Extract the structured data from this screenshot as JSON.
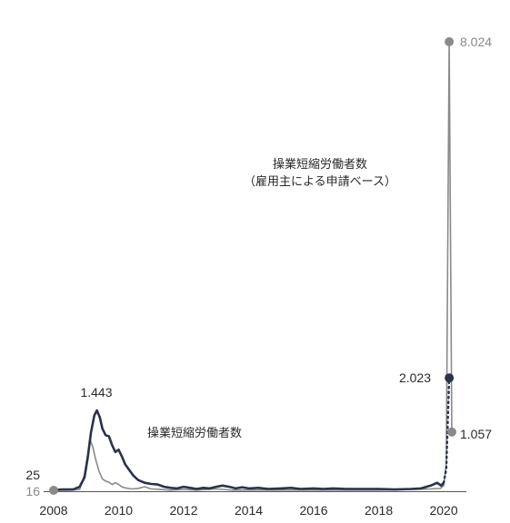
{
  "chart_data": {
    "type": "line",
    "title": "",
    "xlabel": "",
    "ylabel": "",
    "x_ticks": [
      2008,
      2010,
      2012,
      2014,
      2016,
      2018,
      2020
    ],
    "xlim": [
      2008,
      2020.85
    ],
    "ylim": [
      0,
      8.3
    ],
    "grid": false,
    "colors": {
      "dark": "#2a3347",
      "grey": "#8a8a8a",
      "axis": "#555555"
    },
    "annotations": {
      "peak_2009": "1.443",
      "start_dark": "25",
      "start_grey": "16",
      "end_dark": "2.023",
      "end_grey_peak": "8.024",
      "end_grey_last": "1.057",
      "series_label_dark": "操業短縮労働者数",
      "series_label_grey_line1": "操業短縮労働者数",
      "series_label_grey_line2": "（雇用主による申請ベース）"
    },
    "series": [
      {
        "name": "操業短縮労働者数",
        "color": "#2a3347",
        "points": [
          [
            2008.0,
            0.025
          ],
          [
            2008.3,
            0.03
          ],
          [
            2008.6,
            0.03
          ],
          [
            2008.8,
            0.08
          ],
          [
            2008.95,
            0.25
          ],
          [
            2009.05,
            0.6
          ],
          [
            2009.15,
            1.05
          ],
          [
            2009.25,
            1.35
          ],
          [
            2009.33,
            1.443
          ],
          [
            2009.42,
            1.32
          ],
          [
            2009.5,
            1.12
          ],
          [
            2009.6,
            1.0
          ],
          [
            2009.7,
            0.98
          ],
          [
            2009.8,
            0.82
          ],
          [
            2009.9,
            0.7
          ],
          [
            2010.0,
            0.74
          ],
          [
            2010.1,
            0.62
          ],
          [
            2010.2,
            0.48
          ],
          [
            2010.3,
            0.4
          ],
          [
            2010.45,
            0.28
          ],
          [
            2010.6,
            0.2
          ],
          [
            2010.8,
            0.15
          ],
          [
            2011.0,
            0.13
          ],
          [
            2011.2,
            0.12
          ],
          [
            2011.4,
            0.08
          ],
          [
            2011.6,
            0.06
          ],
          [
            2011.8,
            0.05
          ],
          [
            2012.0,
            0.08
          ],
          [
            2012.2,
            0.06
          ],
          [
            2012.4,
            0.04
          ],
          [
            2012.6,
            0.06
          ],
          [
            2012.8,
            0.05
          ],
          [
            2013.0,
            0.08
          ],
          [
            2013.2,
            0.1
          ],
          [
            2013.4,
            0.08
          ],
          [
            2013.6,
            0.05
          ],
          [
            2013.8,
            0.07
          ],
          [
            2014.0,
            0.05
          ],
          [
            2014.3,
            0.06
          ],
          [
            2014.6,
            0.04
          ],
          [
            2015.0,
            0.05
          ],
          [
            2015.3,
            0.06
          ],
          [
            2015.6,
            0.04
          ],
          [
            2016.0,
            0.05
          ],
          [
            2016.3,
            0.04
          ],
          [
            2016.6,
            0.05
          ],
          [
            2017.0,
            0.04
          ],
          [
            2017.5,
            0.04
          ],
          [
            2018.0,
            0.04
          ],
          [
            2018.5,
            0.03
          ],
          [
            2019.0,
            0.04
          ],
          [
            2019.3,
            0.05
          ],
          [
            2019.6,
            0.1
          ],
          [
            2019.8,
            0.15
          ],
          [
            2019.92,
            0.1
          ],
          [
            2020.0,
            0.15
          ],
          [
            2020.08,
            0.4
          ],
          [
            2020.17,
            2.023
          ]
        ],
        "dotted_from_index": 55
      },
      {
        "name": "操業短縮労働者数（雇用主による申請ベース）",
        "color": "#8a8a8a",
        "points": [
          [
            2008.0,
            0.016
          ],
          [
            2008.5,
            0.02
          ],
          [
            2008.8,
            0.03
          ],
          [
            2008.95,
            0.3
          ],
          [
            2009.05,
            0.65
          ],
          [
            2009.12,
            0.92
          ],
          [
            2009.2,
            0.8
          ],
          [
            2009.3,
            0.55
          ],
          [
            2009.4,
            0.35
          ],
          [
            2009.5,
            0.22
          ],
          [
            2009.6,
            0.18
          ],
          [
            2009.7,
            0.16
          ],
          [
            2009.8,
            0.12
          ],
          [
            2009.9,
            0.15
          ],
          [
            2010.0,
            0.12
          ],
          [
            2010.1,
            0.08
          ],
          [
            2010.2,
            0.06
          ],
          [
            2010.4,
            0.04
          ],
          [
            2010.6,
            0.05
          ],
          [
            2010.8,
            0.08
          ],
          [
            2011.0,
            0.04
          ],
          [
            2011.3,
            0.03
          ],
          [
            2011.6,
            0.02
          ],
          [
            2012.0,
            0.03
          ],
          [
            2012.4,
            0.02
          ],
          [
            2013.0,
            0.04
          ],
          [
            2013.5,
            0.02
          ],
          [
            2014.0,
            0.02
          ],
          [
            2015.0,
            0.02
          ],
          [
            2016.0,
            0.02
          ],
          [
            2017.0,
            0.02
          ],
          [
            2018.0,
            0.02
          ],
          [
            2019.0,
            0.03
          ],
          [
            2019.6,
            0.04
          ],
          [
            2019.9,
            0.05
          ],
          [
            2020.0,
            0.1
          ],
          [
            2020.08,
            0.5
          ],
          [
            2020.17,
            8.024
          ],
          [
            2020.25,
            1.057
          ]
        ]
      }
    ]
  }
}
